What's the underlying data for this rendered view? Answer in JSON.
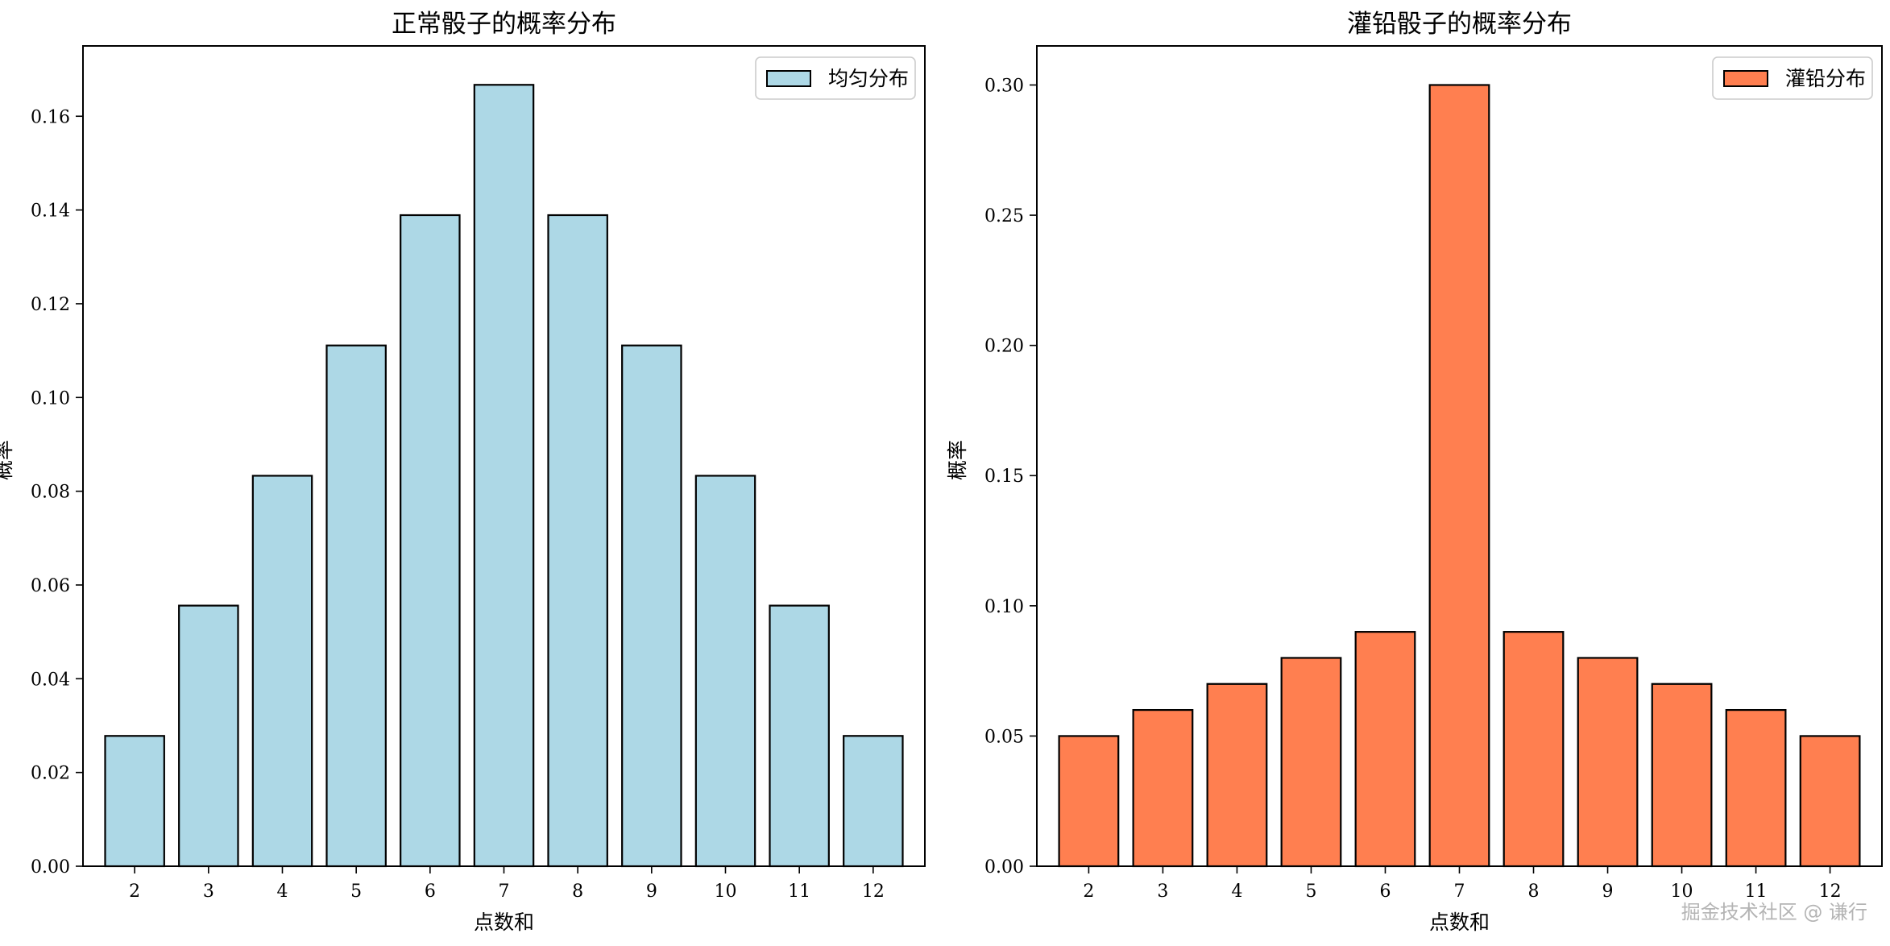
{
  "chart_data": [
    {
      "type": "bar",
      "title": "正常骰子的概率分布",
      "xlabel": "点数和",
      "ylabel": "概率",
      "categories": [
        "2",
        "3",
        "4",
        "5",
        "6",
        "7",
        "8",
        "9",
        "10",
        "11",
        "12"
      ],
      "series": [
        {
          "name": "均匀分布",
          "values": [
            0.0278,
            0.0556,
            0.0833,
            0.1111,
            0.1389,
            0.1667,
            0.1389,
            0.1111,
            0.0833,
            0.0556,
            0.0278
          ]
        }
      ],
      "ylim": [
        0,
        0.175
      ],
      "yticks": [
        0,
        0.02,
        0.04,
        0.06,
        0.08,
        0.1,
        0.12,
        0.14,
        0.16
      ],
      "ytick_labels": [
        "0.00",
        "0.02",
        "0.04",
        "0.06",
        "0.08",
        "0.10",
        "0.12",
        "0.14",
        "0.16"
      ],
      "color": "#add8e6",
      "legend_position": "top-right",
      "grid": false
    },
    {
      "type": "bar",
      "title": "灌铅骰子的概率分布",
      "xlabel": "点数和",
      "ylabel": "概率",
      "categories": [
        "2",
        "3",
        "4",
        "5",
        "6",
        "7",
        "8",
        "9",
        "10",
        "11",
        "12"
      ],
      "series": [
        {
          "name": "灌铅分布",
          "values": [
            0.05,
            0.06,
            0.07,
            0.08,
            0.09,
            0.3,
            0.09,
            0.08,
            0.07,
            0.06,
            0.05
          ]
        }
      ],
      "ylim": [
        0,
        0.315
      ],
      "yticks": [
        0,
        0.05,
        0.1,
        0.15,
        0.2,
        0.25,
        0.3
      ],
      "ytick_labels": [
        "0.00",
        "0.05",
        "0.10",
        "0.15",
        "0.20",
        "0.25",
        "0.30"
      ],
      "color": "#ff7f50",
      "legend_position": "top-right",
      "grid": false
    }
  ],
  "watermark": "掘金技术社区 @ 谦行"
}
